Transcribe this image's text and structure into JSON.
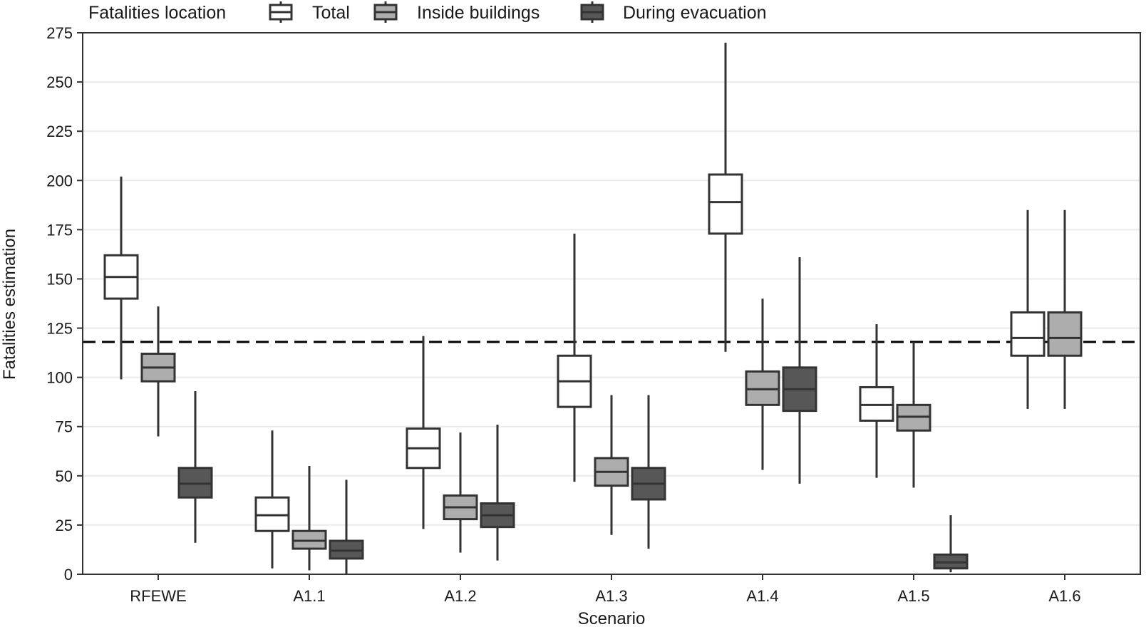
{
  "chart_data": {
    "type": "boxplot",
    "xlabel": "Scenario",
    "ylabel": "Fatalities estimation",
    "ylim": [
      0,
      275
    ],
    "yticks": [
      0,
      25,
      50,
      75,
      100,
      125,
      150,
      175,
      200,
      225,
      250,
      275
    ],
    "grid": "horizontal",
    "reference_line": {
      "y": 118,
      "style": "dashed"
    },
    "legend": {
      "title": "Fatalities location",
      "position": "top-left",
      "entries": [
        "Total",
        "Inside buildings",
        "During evacuation"
      ]
    },
    "colors": {
      "Total": "#ffffff",
      "Inside buildings": "#adadad",
      "During evacuation": "#575757",
      "outline": "#333333",
      "grid": "#ebebeb",
      "reference": "#000000"
    },
    "categories": [
      "RFEWE",
      "A1.1",
      "A1.2",
      "A1.3",
      "A1.4",
      "A1.5",
      "A1.6"
    ],
    "series": [
      {
        "name": "Total",
        "boxes": [
          {
            "min": 99,
            "q1": 140,
            "median": 151,
            "q3": 162,
            "max": 202
          },
          {
            "min": 3,
            "q1": 22,
            "median": 30,
            "q3": 39,
            "max": 73
          },
          {
            "min": 23,
            "q1": 54,
            "median": 64,
            "q3": 74,
            "max": 121
          },
          {
            "min": 47,
            "q1": 85,
            "median": 98,
            "q3": 111,
            "max": 173
          },
          {
            "min": 113,
            "q1": 173,
            "median": 189,
            "q3": 203,
            "max": 270
          },
          {
            "min": 49,
            "q1": 78,
            "median": 86,
            "q3": 95,
            "max": 127
          },
          {
            "min": 84,
            "q1": 111,
            "median": 120,
            "q3": 133,
            "max": 185
          }
        ]
      },
      {
        "name": "Inside buildings",
        "boxes": [
          {
            "min": 70,
            "q1": 98,
            "median": 105,
            "q3": 112,
            "max": 136
          },
          {
            "min": 2,
            "q1": 13,
            "median": 17,
            "q3": 22,
            "max": 55
          },
          {
            "min": 11,
            "q1": 28,
            "median": 34,
            "q3": 40,
            "max": 72
          },
          {
            "min": 20,
            "q1": 45,
            "median": 52,
            "q3": 59,
            "max": 91
          },
          {
            "min": 53,
            "q1": 86,
            "median": 94,
            "q3": 103,
            "max": 140
          },
          {
            "min": 44,
            "q1": 73,
            "median": 80,
            "q3": 86,
            "max": 118
          },
          {
            "min": 84,
            "q1": 111,
            "median": 120,
            "q3": 133,
            "max": 185
          }
        ]
      },
      {
        "name": "During evacuation",
        "boxes": [
          {
            "min": 16,
            "q1": 39,
            "median": 46,
            "q3": 54,
            "max": 93
          },
          {
            "min": 0,
            "q1": 8,
            "median": 12,
            "q3": 17,
            "max": 48
          },
          {
            "min": 7,
            "q1": 24,
            "median": 30,
            "q3": 36,
            "max": 76
          },
          {
            "min": 13,
            "q1": 38,
            "median": 46,
            "q3": 54,
            "max": 91
          },
          {
            "min": 46,
            "q1": 83,
            "median": 94,
            "q3": 105,
            "max": 161
          },
          {
            "min": 1,
            "q1": 3,
            "median": 6,
            "q3": 10,
            "max": 30
          },
          {
            "min": 0,
            "q1": 0,
            "median": 0,
            "q3": 0,
            "max": 0
          }
        ]
      }
    ]
  }
}
